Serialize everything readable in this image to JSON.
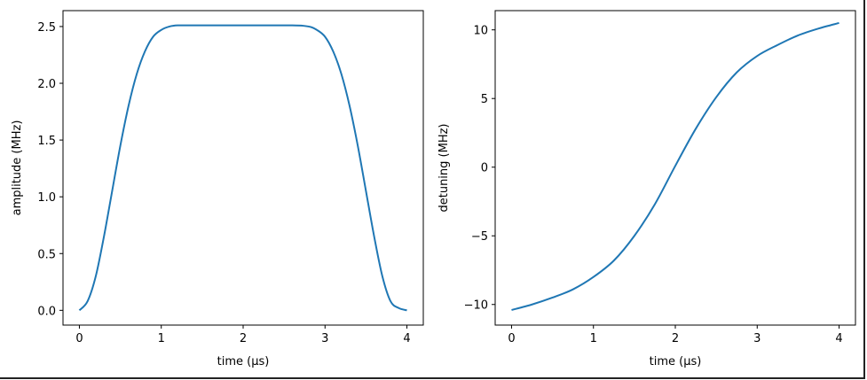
{
  "chart_data": [
    {
      "type": "line",
      "title": "",
      "xlabel": "time (µs)",
      "ylabel": "amplitude (MHz)",
      "xlim": [
        -0.2,
        4.2
      ],
      "ylim": [
        -0.13,
        2.64
      ],
      "xticks": [
        "0",
        "1",
        "2",
        "3",
        "4"
      ],
      "yticks": [
        "0.0",
        "0.5",
        "1.0",
        "1.5",
        "2.0",
        "2.5"
      ],
      "grid": false,
      "color": "#1f77b4",
      "series": [
        {
          "name": "amplitude",
          "x": [
            0,
            0.1,
            0.2,
            0.3,
            0.4,
            0.5,
            0.6,
            0.7,
            0.8,
            0.9,
            1.0,
            1.1,
            1.2,
            1.4,
            2.0,
            2.6,
            2.8,
            2.9,
            3.0,
            3.1,
            3.2,
            3.3,
            3.4,
            3.5,
            3.6,
            3.7,
            3.8,
            3.9,
            4.0
          ],
          "values": [
            0.0,
            0.08,
            0.3,
            0.65,
            1.05,
            1.45,
            1.8,
            2.08,
            2.28,
            2.41,
            2.47,
            2.5,
            2.51,
            2.51,
            2.51,
            2.51,
            2.5,
            2.47,
            2.41,
            2.28,
            2.08,
            1.8,
            1.45,
            1.05,
            0.65,
            0.3,
            0.08,
            0.02,
            0.0
          ]
        }
      ]
    },
    {
      "type": "line",
      "title": "",
      "xlabel": "time (µs)",
      "ylabel": "detuning (MHz)",
      "xlim": [
        -0.2,
        4.2
      ],
      "ylim": [
        -11.5,
        11.4
      ],
      "xticks": [
        "0",
        "1",
        "2",
        "3",
        "4"
      ],
      "yticks": [
        "−10",
        "−5",
        "0",
        "5",
        "10"
      ],
      "grid": false,
      "color": "#1f77b4",
      "series": [
        {
          "name": "detuning",
          "x": [
            0,
            0.25,
            0.5,
            0.75,
            1.0,
            1.25,
            1.5,
            1.75,
            2.0,
            2.25,
            2.5,
            2.75,
            3.0,
            3.25,
            3.5,
            3.75,
            4.0
          ],
          "values": [
            -10.4,
            -10.0,
            -9.5,
            -8.9,
            -8.0,
            -6.8,
            -5.0,
            -2.7,
            0.1,
            2.8,
            5.1,
            6.9,
            8.1,
            8.9,
            9.6,
            10.1,
            10.5
          ]
        }
      ]
    }
  ]
}
